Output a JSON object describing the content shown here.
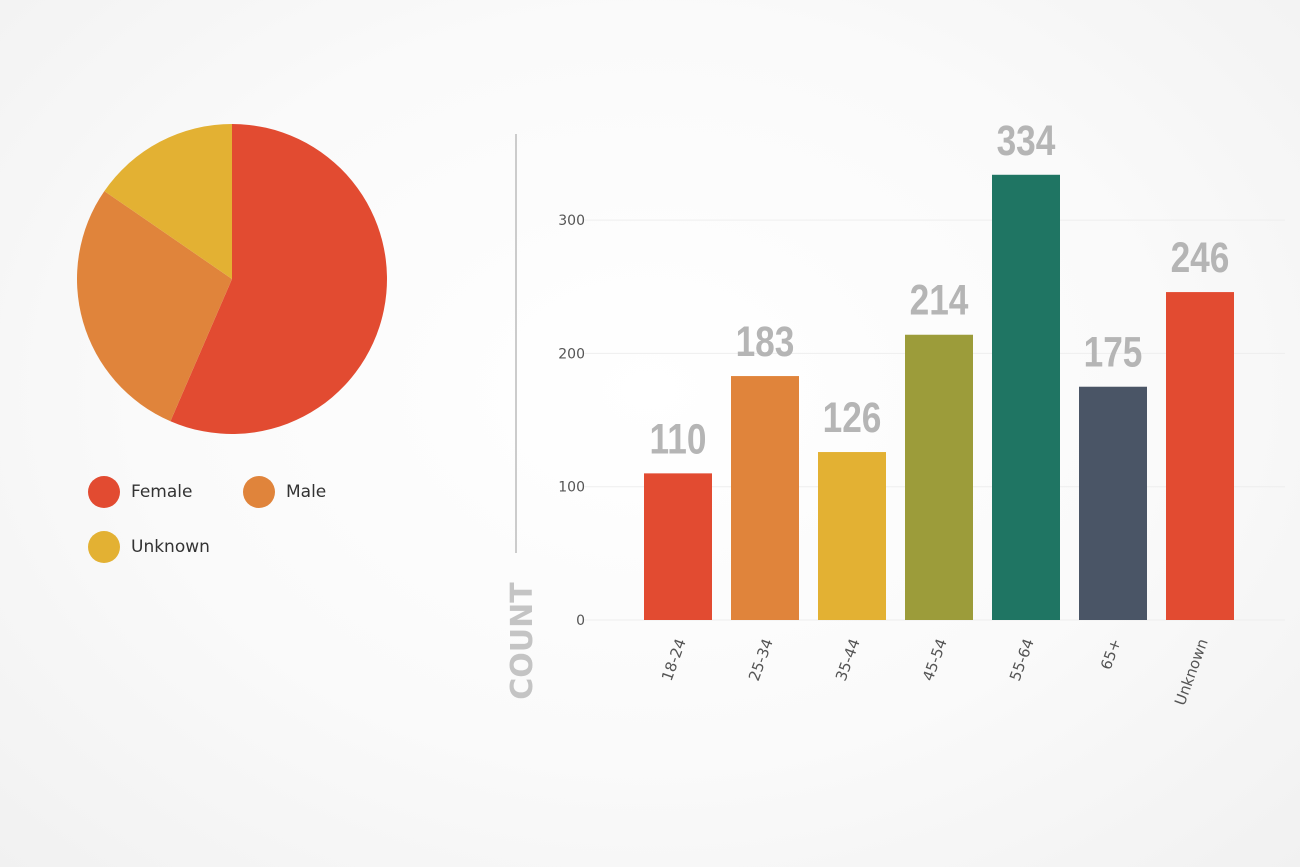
{
  "chart_data": [
    {
      "type": "pie",
      "slices": [
        {
          "label": "Female",
          "value": 56.5,
          "color": "#e24b31"
        },
        {
          "label": "Male",
          "value": 28.1,
          "color": "#e0843b"
        },
        {
          "label": "Unknown",
          "value": 15.4,
          "color": "#e3b133"
        }
      ],
      "legend": "bottom"
    },
    {
      "type": "bar",
      "categories": [
        "18-24",
        "25-34",
        "35-44",
        "45-54",
        "55-64",
        "65+",
        "Unknown"
      ],
      "values": [
        110,
        183,
        126,
        214,
        334,
        175,
        246
      ],
      "colors": [
        "#e24b31",
        "#e0843b",
        "#e3b133",
        "#9c9c3a",
        "#1f7563",
        "#4a5566",
        "#e24b31"
      ],
      "value_labels": [
        "110",
        "183",
        "126",
        "214",
        "334",
        "175",
        "246"
      ],
      "ylabel": "COUNT",
      "yticks": [
        0,
        100,
        200,
        300
      ],
      "ylim": [
        0,
        334
      ],
      "grid": true
    }
  ],
  "colors": {
    "axis_line": "#cccccc",
    "grid_line": "#eeeeee",
    "tick_text": "#555555",
    "value_label": "#b5b5b5",
    "ylabel_text": "#c4c4c4"
  }
}
